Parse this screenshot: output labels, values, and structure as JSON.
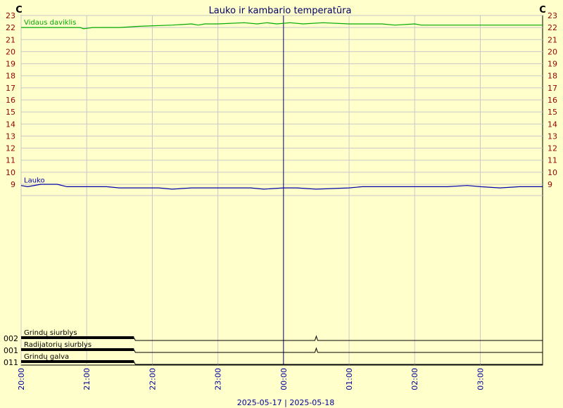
{
  "chart_data": {
    "type": "line",
    "title": "Lauko ir kambario temperatūra",
    "y_unit_left": "C",
    "y_unit_right": "C",
    "ylim": [
      9,
      23
    ],
    "y_ticks": [
      9,
      10,
      11,
      12,
      13,
      14,
      15,
      16,
      17,
      18,
      19,
      20,
      21,
      22,
      23
    ],
    "x_ticks": [
      "20:00",
      "21:00",
      "22:00",
      "23:00",
      "00:00",
      "01:00",
      "02:00",
      "03:00"
    ],
    "xlim_hours": [
      0,
      7.95
    ],
    "date_label": "2025-05-17 | 2025-05-18",
    "grid": true,
    "colors": {
      "background": "#ffffcc",
      "grid": "#c8c8c8",
      "vidaus": "#00aa00",
      "lauko": "#0000aa",
      "midnight_line": "#000066",
      "y_tick": "#990000",
      "x_tick": "#000099"
    },
    "series": [
      {
        "name": "Vidaus daviklis",
        "x_hours": [
          0,
          0.9,
          0.95,
          1.1,
          1.5,
          1.8,
          2.3,
          2.6,
          2.7,
          2.8,
          3.0,
          3.4,
          3.6,
          3.75,
          3.9,
          4.1,
          4.3,
          4.6,
          5.0,
          5.5,
          5.7,
          6.0,
          6.1,
          6.3,
          6.6,
          7.0,
          7.5,
          7.95
        ],
        "values": [
          22.0,
          22.0,
          21.9,
          22.0,
          22.0,
          22.1,
          22.2,
          22.3,
          22.2,
          22.3,
          22.3,
          22.4,
          22.3,
          22.4,
          22.3,
          22.4,
          22.3,
          22.4,
          22.3,
          22.3,
          22.2,
          22.3,
          22.2,
          22.2,
          22.2,
          22.2,
          22.2,
          22.2
        ]
      },
      {
        "name": "Lauko",
        "x_hours": [
          0,
          0.1,
          0.3,
          0.55,
          0.7,
          1.0,
          1.3,
          1.5,
          1.8,
          2.1,
          2.3,
          2.6,
          3.0,
          3.5,
          3.7,
          4.0,
          4.2,
          4.5,
          5.0,
          5.2,
          5.5,
          6.0,
          6.5,
          6.8,
          7.0,
          7.3,
          7.6,
          7.95
        ],
        "values": [
          8.9,
          8.8,
          9.0,
          9.0,
          8.8,
          8.8,
          8.8,
          8.7,
          8.7,
          8.7,
          8.6,
          8.7,
          8.7,
          8.7,
          8.6,
          8.7,
          8.7,
          8.6,
          8.7,
          8.8,
          8.8,
          8.8,
          8.8,
          8.9,
          8.8,
          8.7,
          8.8,
          8.8
        ]
      }
    ],
    "digital_signals": [
      {
        "id": "002",
        "name": "Grindų siurblys",
        "on_until_hours": 1.72,
        "spike_at_hours": 4.5
      },
      {
        "id": "001",
        "name": "Radijatorių siurblys",
        "on_until_hours": 1.72,
        "spike_at_hours": 4.5
      },
      {
        "id": "011",
        "name": "Grindų galva",
        "on_until_hours": 1.72,
        "spike_at_hours": null
      }
    ]
  }
}
